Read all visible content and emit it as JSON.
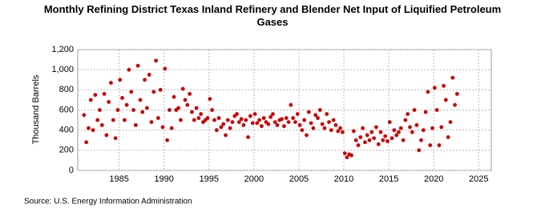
{
  "chart_data": {
    "type": "scatter",
    "title": "Monthly Refining District Texas Inland Refinery and Blender Net Input of Liquified Petroleum Gases",
    "y_label": "Thousand Barrels",
    "source": "Source: U.S. Energy Information Administration",
    "color": "#cc0000",
    "grid": true,
    "xlim": [
      1980.4,
      2026.4
    ],
    "xticks": [
      1985,
      1990,
      1995,
      2000,
      2005,
      2010,
      2015,
      2020,
      2025
    ],
    "ylim": [
      0,
      1200
    ],
    "yticks": [
      0,
      200,
      400,
      600,
      800,
      {
        "value": 1000,
        "label": "1,000"
      },
      {
        "value": 1200,
        "label": "1,200"
      }
    ],
    "x": [
      1981.1,
      1981.35,
      1981.6,
      1981.85,
      1982.1,
      1982.35,
      1982.6,
      1982.85,
      1983.1,
      1983.35,
      1983.6,
      1983.85,
      1984.1,
      1984.35,
      1984.6,
      1984.85,
      1985.1,
      1985.35,
      1985.6,
      1985.85,
      1986.1,
      1986.35,
      1986.6,
      1986.85,
      1987.1,
      1987.35,
      1987.6,
      1987.85,
      1988.1,
      1988.35,
      1988.6,
      1988.85,
      1989.1,
      1989.35,
      1989.6,
      1989.85,
      1990.1,
      1990.35,
      1990.6,
      1990.85,
      1991.1,
      1991.35,
      1991.6,
      1991.85,
      1992.1,
      1992.35,
      1992.6,
      1992.85,
      1993.1,
      1993.35,
      1993.6,
      1993.85,
      1994.1,
      1994.35,
      1994.6,
      1994.85,
      1995.1,
      1995.35,
      1995.6,
      1995.85,
      1996.1,
      1996.35,
      1996.6,
      1996.85,
      1997.1,
      1997.35,
      1997.6,
      1997.85,
      1998.1,
      1998.35,
      1998.6,
      1998.85,
      1999.1,
      1999.35,
      1999.6,
      1999.85,
      2000.1,
      2000.35,
      2000.6,
      2000.85,
      2001.1,
      2001.35,
      2001.6,
      2001.85,
      2002.1,
      2002.35,
      2002.6,
      2002.85,
      2003.1,
      2003.35,
      2003.6,
      2003.85,
      2004.1,
      2004.35,
      2004.6,
      2004.85,
      2005.1,
      2005.35,
      2005.6,
      2005.85,
      2006.1,
      2006.35,
      2006.6,
      2006.85,
      2007.1,
      2007.35,
      2007.6,
      2007.85,
      2008.1,
      2008.35,
      2008.6,
      2008.85,
      2009.1,
      2009.35,
      2009.6,
      2009.85,
      2010.1,
      2010.35,
      2010.6,
      2010.85,
      2011.1,
      2011.35,
      2011.6,
      2011.85,
      2012.1,
      2012.35,
      2012.6,
      2012.85,
      2013.1,
      2013.35,
      2013.6,
      2013.85,
      2014.1,
      2014.35,
      2014.6,
      2014.85,
      2015.1,
      2015.35,
      2015.6,
      2015.85,
      2016.1,
      2016.35,
      2016.6,
      2016.85,
      2017.1,
      2017.35,
      2017.6,
      2017.85,
      2018.1,
      2018.35,
      2018.6,
      2018.85,
      2019.1,
      2019.35,
      2019.6,
      2019.85,
      2020.1,
      2020.35,
      2020.6,
      2020.85,
      2021.1,
      2021.35,
      2021.6,
      2021.85,
      2022.1,
      2022.35,
      2022.6
    ],
    "values": [
      550,
      280,
      420,
      700,
      400,
      750,
      500,
      600,
      450,
      760,
      350,
      680,
      870,
      500,
      320,
      600,
      900,
      720,
      500,
      650,
      1000,
      780,
      600,
      450,
      1040,
      700,
      580,
      900,
      620,
      950,
      480,
      780,
      1090,
      520,
      800,
      430,
      1010,
      300,
      600,
      420,
      730,
      600,
      620,
      500,
      810,
      700,
      650,
      760,
      580,
      500,
      620,
      520,
      560,
      480,
      500,
      520,
      710,
      600,
      500,
      400,
      520,
      430,
      460,
      350,
      500,
      420,
      480,
      540,
      560,
      480,
      510,
      450,
      500,
      330,
      540,
      470,
      560,
      470,
      500,
      440,
      520,
      480,
      460,
      530,
      560,
      480,
      450,
      500,
      510,
      440,
      520,
      480,
      650,
      520,
      480,
      560,
      450,
      400,
      500,
      350,
      580,
      470,
      420,
      550,
      520,
      600,
      460,
      420,
      560,
      480,
      400,
      500,
      450,
      390,
      420,
      380,
      170,
      130,
      160,
      150,
      390,
      300,
      250,
      330,
      420,
      280,
      350,
      300,
      380,
      320,
      430,
      260,
      380,
      300,
      340,
      290,
      480,
      320,
      400,
      350,
      380,
      420,
      300,
      500,
      560,
      430,
      380,
      600,
      450,
      200,
      300,
      400,
      580,
      780,
      250,
      420,
      820,
      600,
      250,
      430,
      840,
      700,
      330,
      480,
      920,
      650,
      760
    ]
  }
}
